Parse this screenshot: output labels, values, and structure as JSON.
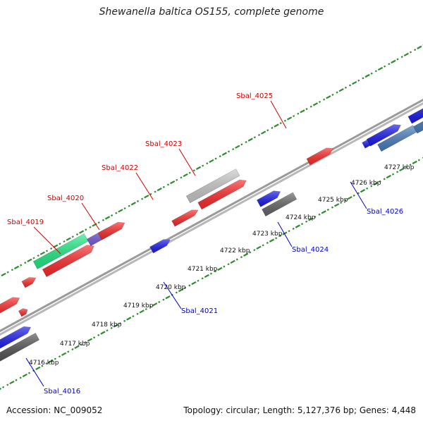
{
  "title": "Shewanella baltica OS155, complete genome",
  "footer": {
    "accession": "Accession: NC_009052",
    "summary": "Topology: circular; Length: 5,127,376 bp; Genes: 4,448"
  },
  "colors": {
    "forward_label": "#cc0000",
    "reverse_label": "#0000cc",
    "dots": "#2e8b2e",
    "backbone": "#a0a0a0"
  },
  "ticks": [
    {
      "label": "4716 kbp"
    },
    {
      "label": "4717 kbp"
    },
    {
      "label": "4718 kbp"
    },
    {
      "label": "4719 kbp"
    },
    {
      "label": "4720 kbp"
    },
    {
      "label": "4721 kbp"
    },
    {
      "label": "4722 kbp"
    },
    {
      "label": "4723 kbp"
    },
    {
      "label": "4724 kbp"
    },
    {
      "label": "4725 kbp"
    },
    {
      "label": "4726 kbp"
    },
    {
      "label": "4727 kbp"
    }
  ],
  "labels": {
    "forward": [
      "Sbal_4019",
      "Sbal_4020",
      "Sbal_4022",
      "Sbal_4023",
      "Sbal_4025"
    ],
    "reverse": [
      "Sbal_4016",
      "Sbal_4021",
      "Sbal_4024",
      "Sbal_4026"
    ]
  }
}
